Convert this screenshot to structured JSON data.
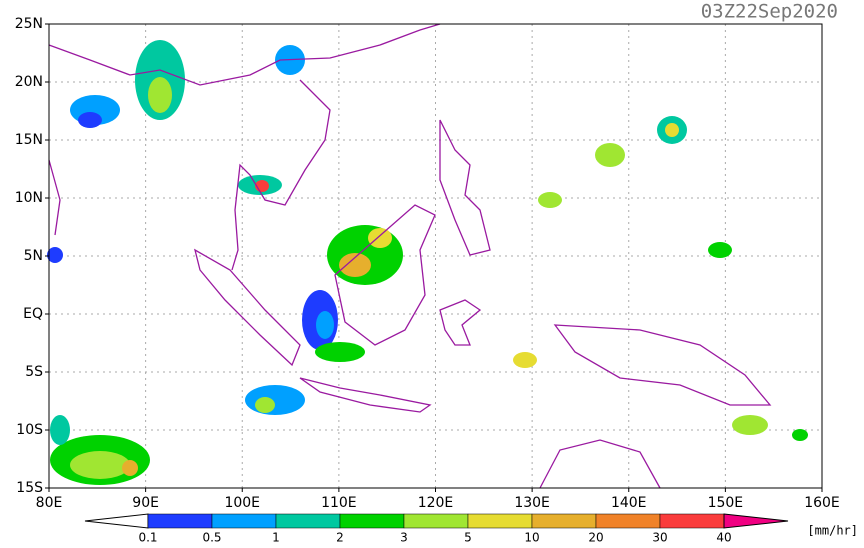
{
  "map": {
    "title": "03Z22Sep2020",
    "x_labels": [
      "80E",
      "90E",
      "100E",
      "110E",
      "120E",
      "130E",
      "140E",
      "150E",
      "160E"
    ],
    "y_labels": [
      "25N",
      "20N",
      "15N",
      "10N",
      "5N",
      "EQ",
      "5S",
      "10S",
      "15S"
    ],
    "colorbar": {
      "labels": [
        0.1,
        0.5,
        1,
        2,
        3,
        5,
        10,
        20,
        30,
        40
      ],
      "colors": [
        "#ffffff",
        "#1e3cff",
        "#00a0ff",
        "#00c8a0",
        "#00d200",
        "#a0e632",
        "#e6dc32",
        "#e6af2d",
        "#f08228",
        "#fa3c3c",
        "#f00082"
      ],
      "unit": "[mm/hr]"
    }
  }
}
